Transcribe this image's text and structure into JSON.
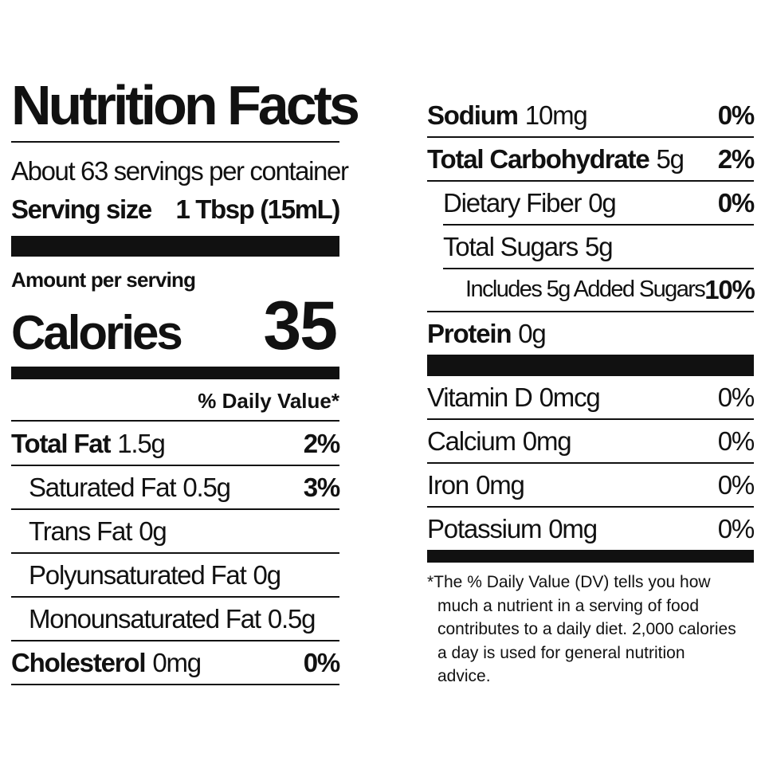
{
  "title": "Nutrition Facts",
  "servings_per_container": "About 63 servings per container",
  "serving_size": {
    "label": "Serving size",
    "value": "1 Tbsp (15mL)"
  },
  "amount_per_serving": "Amount per serving",
  "calories": {
    "label": "Calories",
    "value": "35"
  },
  "daily_value_header": "% Daily Value*",
  "nutrients": [
    {
      "name": "Total Fat",
      "amount": "1.5g",
      "daily_value": "2%"
    },
    {
      "name": "Saturated Fat",
      "amount": "0.5g",
      "daily_value": "3%"
    },
    {
      "name": "Trans Fat",
      "amount": "0g"
    },
    {
      "name": "Polyunsaturated Fat",
      "amount": "0g"
    },
    {
      "name": "Monounsaturated Fat",
      "amount": "0.5g"
    },
    {
      "name": "Cholesterol",
      "amount": "0mg",
      "daily_value": "0%"
    },
    {
      "name": "Sodium",
      "amount": "10mg",
      "daily_value": "0%"
    },
    {
      "name": "Total Carbohydrate",
      "amount": "5g",
      "daily_value": "2%"
    },
    {
      "name": "Dietary Fiber",
      "amount": "0g",
      "daily_value": "0%"
    },
    {
      "name": "Total Sugars",
      "amount": "5g"
    },
    {
      "name": "Includes 5g Added Sugars",
      "daily_value": "10%"
    },
    {
      "name": "Protein",
      "amount": "0g"
    }
  ],
  "vitamins": [
    {
      "name": "Vitamin D",
      "amount": "0mcg",
      "daily_value": "0%"
    },
    {
      "name": "Calcium",
      "amount": "0mg",
      "daily_value": "0%"
    },
    {
      "name": "Iron",
      "amount": "0mg",
      "daily_value": "0%"
    },
    {
      "name": "Potassium",
      "amount": "0mg",
      "daily_value": "0%"
    }
  ],
  "footnote": "*The % Daily Value (DV) tells you how much a nutrient in a serving of food contributes to a daily diet. 2,000 calories a day is used for general nutrition advice."
}
